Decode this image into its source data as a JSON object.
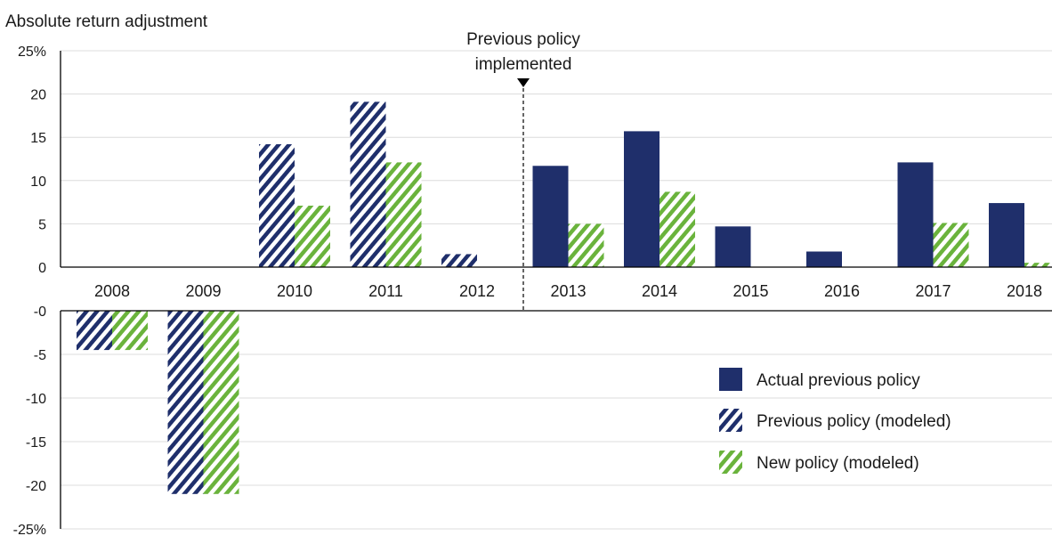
{
  "chart_data": {
    "type": "bar",
    "title": "Absolute return adjustment",
    "categories": [
      "2008",
      "2009",
      "2010",
      "2011",
      "2012",
      "2013",
      "2014",
      "2015",
      "2016",
      "2017",
      "2018"
    ],
    "series": [
      {
        "name": "Actual previous policy",
        "style": "solid",
        "color": "#1f2f6b",
        "values": [
          null,
          null,
          null,
          null,
          null,
          11.7,
          15.7,
          4.7,
          1.8,
          12.1,
          7.4
        ]
      },
      {
        "name": "Previous policy (modeled)",
        "style": "hatched",
        "color": "#1f2f6b",
        "values": [
          -4.5,
          -21,
          14.2,
          19.1,
          1.5,
          null,
          null,
          null,
          null,
          null,
          null
        ]
      },
      {
        "name": "New policy (modeled)",
        "style": "hatched",
        "color": "#6ab33c",
        "values": [
          -4.5,
          -21,
          7.1,
          12.1,
          null,
          5.0,
          8.7,
          null,
          null,
          5.1,
          0.5
        ]
      }
    ],
    "positive_axis": {
      "ticks": [
        "25%",
        "20",
        "15",
        "10",
        "5",
        "0"
      ],
      "ylim": [
        0,
        25
      ]
    },
    "negative_axis": {
      "ticks": [
        "-0",
        "-5",
        "-10",
        "-15",
        "-20",
        "-25%"
      ],
      "ylim": [
        -25,
        0
      ]
    },
    "annotation": {
      "text_line1": "Previous policy",
      "text_line2": "implemented",
      "between": [
        "2012",
        "2013"
      ]
    },
    "legend": {
      "placement": "lower-right"
    },
    "grid": true
  }
}
